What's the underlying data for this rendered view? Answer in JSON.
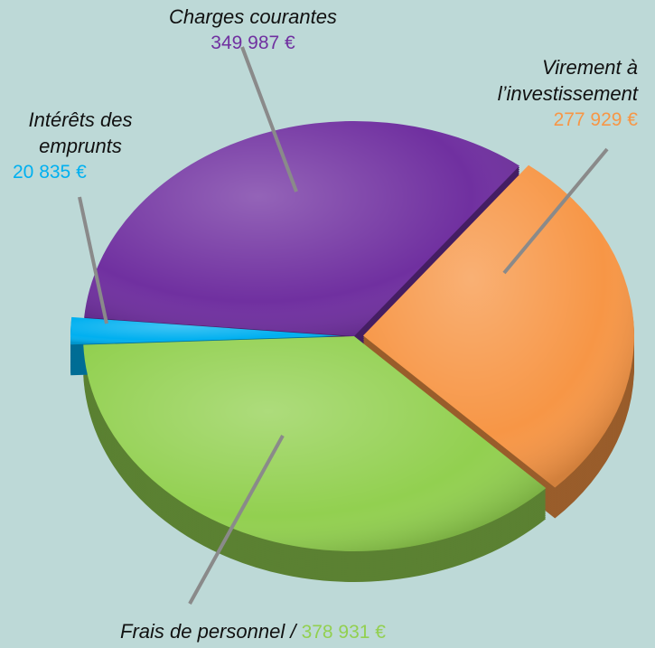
{
  "chart_data": {
    "type": "pie",
    "categories": [
      "Charges courantes",
      "Virement à l’investissement",
      "Frais de personnel /",
      "Intérêts des emprunts"
    ],
    "values": [
      349987,
      277929,
      378931,
      20835
    ],
    "value_labels": [
      "349 987 €",
      "277 929 €",
      "378 931 €",
      "20 835 €"
    ],
    "colors": [
      "#7030a0",
      "#f79646",
      "#92d050",
      "#00b0f0"
    ]
  }
}
